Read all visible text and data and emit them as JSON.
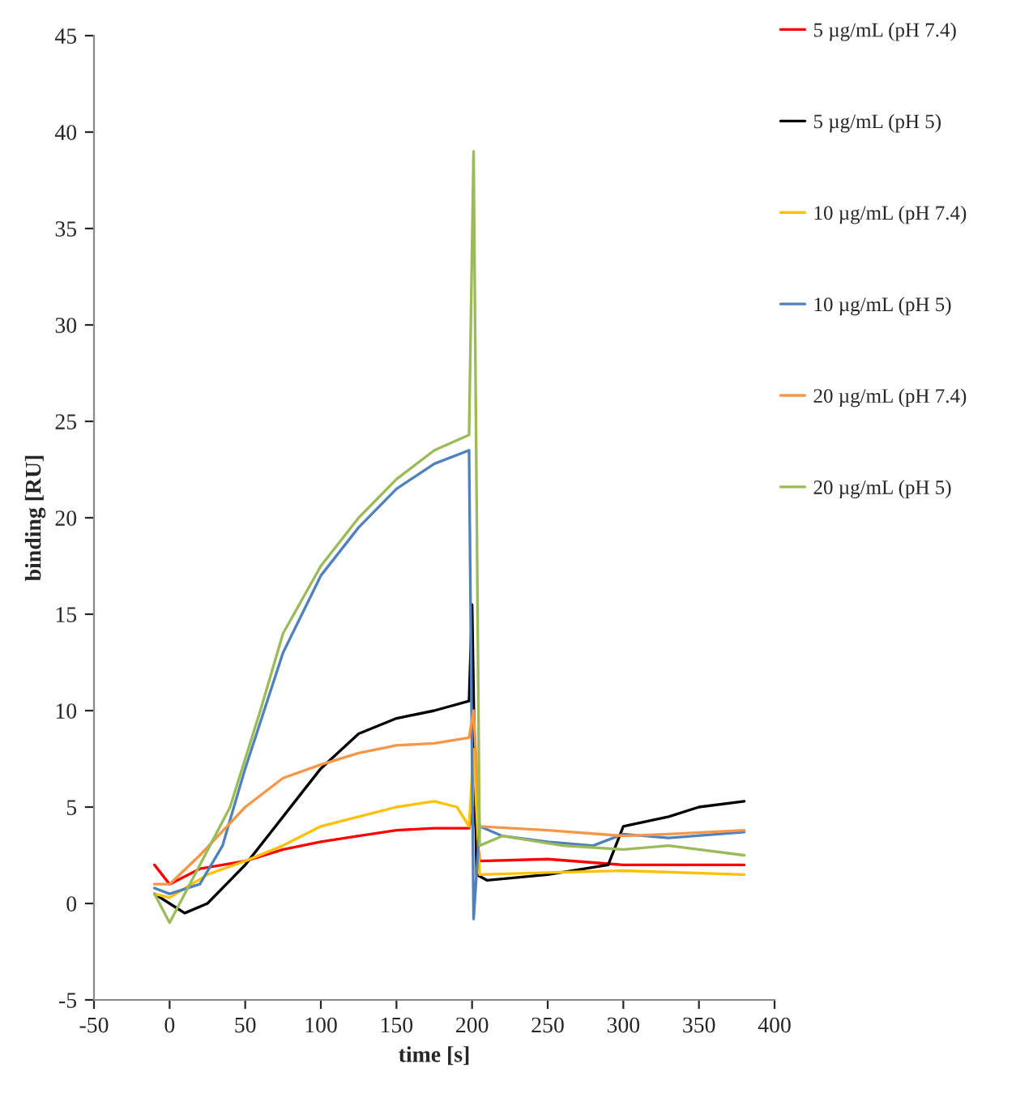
{
  "chart_data": {
    "type": "line",
    "xlabel": "time [s]",
    "ylabel": "binding [RU]",
    "xlim": [
      -50,
      400
    ],
    "xticks": [
      -50,
      0,
      50,
      100,
      150,
      200,
      250,
      300,
      350,
      400
    ],
    "ylim": [
      -5,
      45
    ],
    "yticks": [
      -5,
      0,
      5,
      10,
      15,
      20,
      25,
      30,
      35,
      40,
      45
    ],
    "grid": false,
    "legend": "right",
    "marker": "none",
    "line_style": "solid",
    "series": [
      {
        "name": "5 µg/mL (pH 7.4)",
        "color": "#ff0000",
        "x": [
          -10,
          0,
          20,
          50,
          75,
          100,
          125,
          150,
          175,
          198,
          201,
          205,
          250,
          300,
          380
        ],
        "values": [
          2,
          1,
          1.8,
          2.2,
          2.8,
          3.2,
          3.5,
          3.8,
          3.9,
          3.9,
          5,
          2.2,
          2.3,
          2,
          2
        ]
      },
      {
        "name": "5 µg/mL (pH 5)",
        "color": "#000000",
        "x": [
          -10,
          0,
          10,
          25,
          50,
          75,
          100,
          125,
          150,
          175,
          198,
          200,
          203,
          210,
          250,
          290,
          300,
          330,
          350,
          380
        ],
        "values": [
          0.5,
          0,
          -0.5,
          0,
          2,
          4.5,
          7,
          8.8,
          9.6,
          10,
          10.5,
          15.5,
          1.5,
          1.2,
          1.5,
          2,
          4,
          4.5,
          5,
          5.3
        ]
      },
      {
        "name": "10 µg/mL (pH 7.4)",
        "color": "#ffc000",
        "x": [
          -10,
          0,
          25,
          50,
          75,
          100,
          125,
          150,
          175,
          190,
          198,
          201,
          205,
          250,
          300,
          380
        ],
        "values": [
          0.5,
          0.3,
          1.5,
          2.2,
          3,
          4,
          4.5,
          5,
          5.3,
          5,
          4,
          8,
          1.5,
          1.6,
          1.7,
          1.5
        ]
      },
      {
        "name": "10 µg/mL (pH 5)",
        "color": "#4f81bd",
        "x": [
          -10,
          0,
          20,
          35,
          50,
          75,
          100,
          125,
          150,
          175,
          198,
          201,
          205,
          220,
          250,
          280,
          300,
          330,
          380
        ],
        "values": [
          0.8,
          0.5,
          1,
          3,
          7,
          13,
          17,
          19.5,
          21.5,
          22.8,
          23.5,
          -0.8,
          4,
          3.5,
          3.2,
          3,
          3.6,
          3.4,
          3.7
        ]
      },
      {
        "name": "20 µg/mL (pH 7.4)",
        "color": "#f79646",
        "x": [
          -10,
          0,
          20,
          50,
          75,
          100,
          125,
          150,
          175,
          198,
          201,
          205,
          250,
          300,
          330,
          380
        ],
        "values": [
          1,
          1,
          2.5,
          5,
          6.5,
          7.2,
          7.8,
          8.2,
          8.3,
          8.6,
          10,
          4,
          3.8,
          3.5,
          3.6,
          3.8
        ]
      },
      {
        "name": "20 µg/mL (pH 5)",
        "color": "#9bbb59",
        "x": [
          -10,
          0,
          20,
          40,
          60,
          75,
          100,
          125,
          150,
          175,
          198,
          201,
          205,
          220,
          260,
          300,
          330,
          380
        ],
        "values": [
          0.5,
          -1,
          2,
          5,
          10,
          14,
          17.5,
          20,
          22,
          23.5,
          24.3,
          39,
          3,
          3.5,
          3,
          2.8,
          3,
          2.5
        ]
      }
    ]
  }
}
